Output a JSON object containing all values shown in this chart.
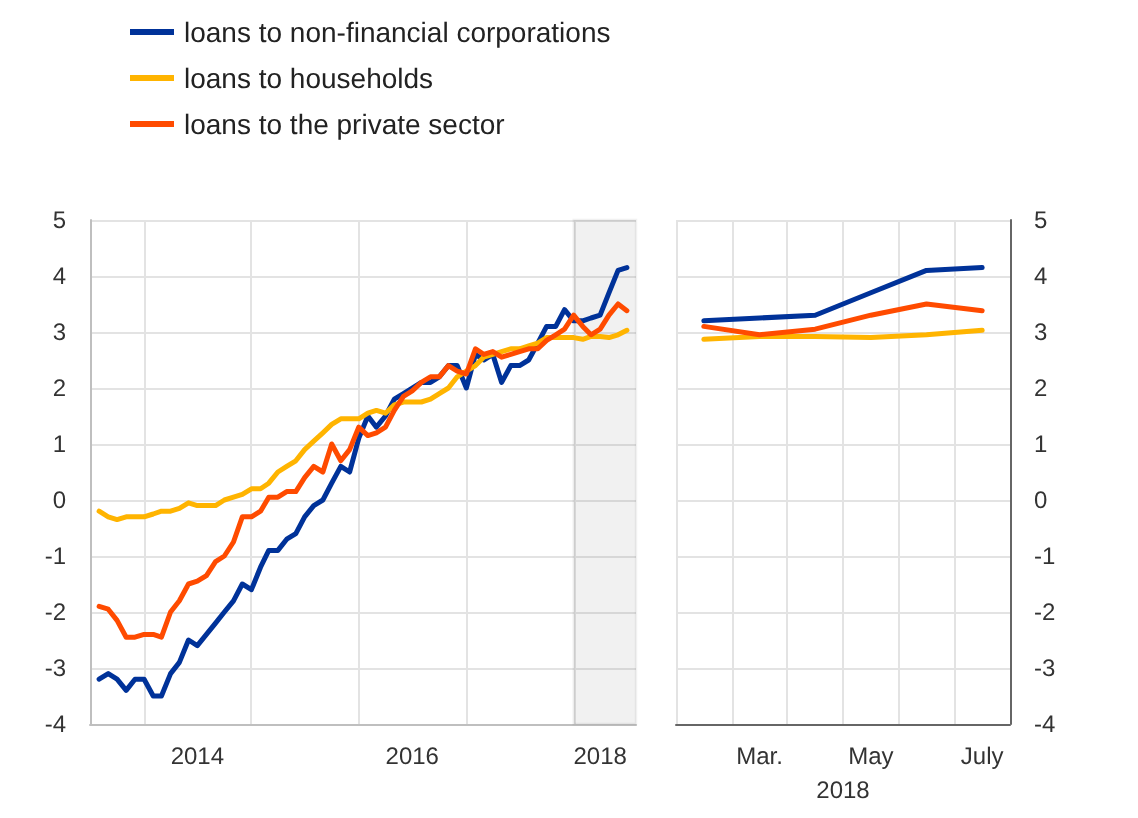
{
  "chart_data": [
    {
      "type": "line",
      "legend": "top left",
      "grid": true,
      "line_style": "solid",
      "marker": "none",
      "x": [
        "2013-08",
        "2013-09",
        "2013-10",
        "2013-11",
        "2013-12",
        "2014-01",
        "2014-02",
        "2014-03",
        "2014-04",
        "2014-05",
        "2014-06",
        "2014-07",
        "2014-08",
        "2014-09",
        "2014-10",
        "2014-11",
        "2014-12",
        "2015-01",
        "2015-02",
        "2015-03",
        "2015-04",
        "2015-05",
        "2015-06",
        "2015-07",
        "2015-08",
        "2015-09",
        "2015-10",
        "2015-11",
        "2015-12",
        "2016-01",
        "2016-02",
        "2016-03",
        "2016-04",
        "2016-05",
        "2016-06",
        "2016-07",
        "2016-08",
        "2016-09",
        "2016-10",
        "2016-11",
        "2016-12",
        "2017-01",
        "2017-02",
        "2017-03",
        "2017-04",
        "2017-05",
        "2017-06",
        "2017-07",
        "2017-08",
        "2017-09",
        "2017-10",
        "2017-11",
        "2017-12",
        "2018-01",
        "2018-02",
        "2018-03",
        "2018-04",
        "2018-05",
        "2018-06",
        "2018-07"
      ],
      "series": [
        {
          "name": "loans to non-financial corporations",
          "color": "#003299",
          "values": [
            -3.2,
            -3.1,
            -3.2,
            -3.4,
            -3.2,
            -3.2,
            -3.5,
            -3.5,
            -3.1,
            -2.9,
            -2.5,
            -2.6,
            -2.4,
            -2.2,
            -2.0,
            -1.8,
            -1.5,
            -1.6,
            -1.2,
            -0.9,
            -0.9,
            -0.7,
            -0.6,
            -0.3,
            -0.1,
            0.0,
            0.3,
            0.6,
            0.5,
            1.1,
            1.5,
            1.3,
            1.5,
            1.8,
            1.9,
            2.0,
            2.1,
            2.1,
            2.2,
            2.4,
            2.4,
            2.0,
            2.6,
            2.5,
            2.6,
            2.1,
            2.4,
            2.4,
            2.5,
            2.8,
            3.1,
            3.1,
            3.4,
            3.2,
            3.2,
            3.25,
            3.3,
            3.7,
            4.1,
            4.15
          ]
        },
        {
          "name": "loans to households",
          "color": "#ffb400",
          "values": [
            -0.2,
            -0.3,
            -0.35,
            -0.3,
            -0.3,
            -0.3,
            -0.25,
            -0.2,
            -0.2,
            -0.15,
            -0.05,
            -0.1,
            -0.1,
            -0.1,
            0.0,
            0.05,
            0.1,
            0.2,
            0.2,
            0.3,
            0.5,
            0.6,
            0.7,
            0.9,
            1.05,
            1.2,
            1.35,
            1.45,
            1.45,
            1.45,
            1.55,
            1.6,
            1.55,
            1.7,
            1.75,
            1.75,
            1.75,
            1.8,
            1.9,
            2.0,
            2.2,
            2.3,
            2.4,
            2.55,
            2.6,
            2.65,
            2.7,
            2.7,
            2.75,
            2.8,
            2.9,
            2.9,
            2.9,
            2.9,
            2.87,
            2.92,
            2.92,
            2.9,
            2.95,
            3.03
          ]
        },
        {
          "name": "loans to the private sector",
          "color": "#ff4b00",
          "values": [
            -1.9,
            -1.95,
            -2.15,
            -2.45,
            -2.45,
            -2.4,
            -2.4,
            -2.45,
            -2.0,
            -1.8,
            -1.5,
            -1.45,
            -1.35,
            -1.1,
            -1.0,
            -0.75,
            -0.3,
            -0.3,
            -0.2,
            0.05,
            0.05,
            0.15,
            0.15,
            0.4,
            0.6,
            0.5,
            1.0,
            0.7,
            0.9,
            1.3,
            1.15,
            1.2,
            1.3,
            1.6,
            1.85,
            1.95,
            2.1,
            2.2,
            2.2,
            2.4,
            2.3,
            2.25,
            2.7,
            2.6,
            2.65,
            2.55,
            2.6,
            2.65,
            2.7,
            2.7,
            2.85,
            2.95,
            3.05,
            3.3,
            3.1,
            2.95,
            3.05,
            3.3,
            3.5,
            3.38
          ]
        }
      ],
      "xlim": [
        "2013-07",
        "2018-08"
      ],
      "xticks": [
        {
          "value": "2014-01",
          "label": null
        },
        {
          "value": "2014-07",
          "label": "2014"
        },
        {
          "value": "2015-01",
          "label": null
        },
        {
          "value": "2016-01",
          "label": null
        },
        {
          "value": "2016-07",
          "label": "2016"
        },
        {
          "value": "2017-01",
          "label": null
        },
        {
          "value": "2018-01",
          "label": null
        },
        {
          "value": "2018-04",
          "label": "2018"
        }
      ],
      "ylim": [
        -4,
        5
      ],
      "yticks": [
        -4,
        -3,
        -2,
        -1,
        0,
        1,
        2,
        3,
        4,
        5
      ],
      "bands": [
        {
          "axis": "x",
          "from": "2018-01",
          "to": "2018-08",
          "color": "#4d4d4d"
        }
      ]
    },
    {
      "type": "line",
      "grid": true,
      "line_style": "solid",
      "marker": "none",
      "xlabel": "2018",
      "categories": [
        null,
        "Mar.",
        null,
        "May",
        null,
        "July"
      ],
      "series": [
        {
          "color": "#003299",
          "values": [
            3.2,
            3.25,
            3.3,
            3.7,
            4.1,
            4.15
          ]
        },
        {
          "color": "#ffb400",
          "values": [
            2.87,
            2.92,
            2.92,
            2.9,
            2.95,
            3.03
          ]
        },
        {
          "color": "#ff4b00",
          "values": [
            3.1,
            2.95,
            3.05,
            3.3,
            3.5,
            3.38
          ]
        }
      ],
      "ylim": [
        -4,
        5
      ],
      "yticks": [
        -4,
        -3,
        -2,
        -1,
        0,
        1,
        2,
        3,
        4,
        5
      ]
    }
  ]
}
